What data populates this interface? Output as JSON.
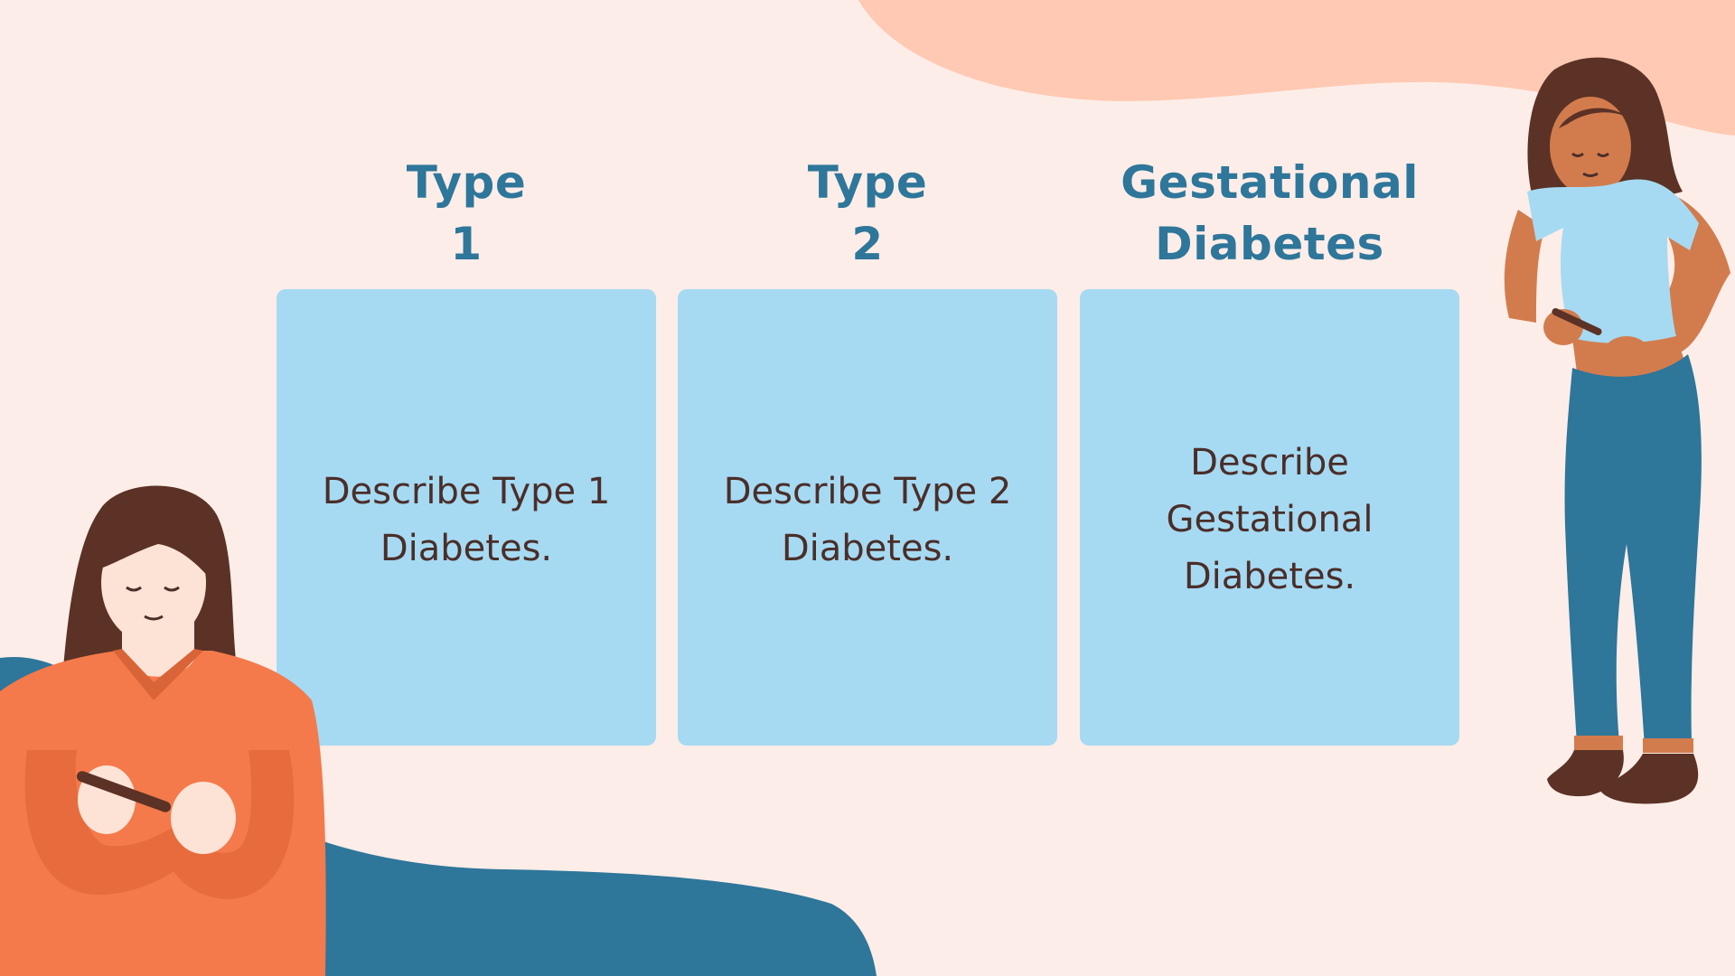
{
  "slide": {
    "columns": [
      {
        "title": "Type\n1",
        "title_line1": "Type",
        "title_line2": "1",
        "description": "Describe Type 1 Diabetes."
      },
      {
        "title": "Type\n2",
        "title_line1": "Type",
        "title_line2": "2",
        "description": "Describe Type 2 Diabetes."
      },
      {
        "title": "Gestational\nDiabetes",
        "title_line1": "Gestational",
        "title_line2": "Diabetes",
        "description": "Describe Gestational Diabetes."
      }
    ]
  },
  "colors": {
    "background": "#FDEDE8",
    "peach_blob": "#FFC9B3",
    "teal_blob": "#2E769A",
    "card": "#A6DAF2",
    "title_text": "#2E769A",
    "body_text": "#4A2E2A",
    "orange_sweater": "#F47A4B",
    "hair_dark": "#5B3225",
    "skin_light": "#FDE3D6",
    "skin_tan": "#D27C4E",
    "shirt_light_blue": "#A6DAF2",
    "jeans_blue": "#2E769A"
  },
  "illustrations": [
    {
      "name": "woman-with-insulin-pen-left-icon"
    },
    {
      "name": "woman-injecting-insulin-right-icon"
    }
  ]
}
